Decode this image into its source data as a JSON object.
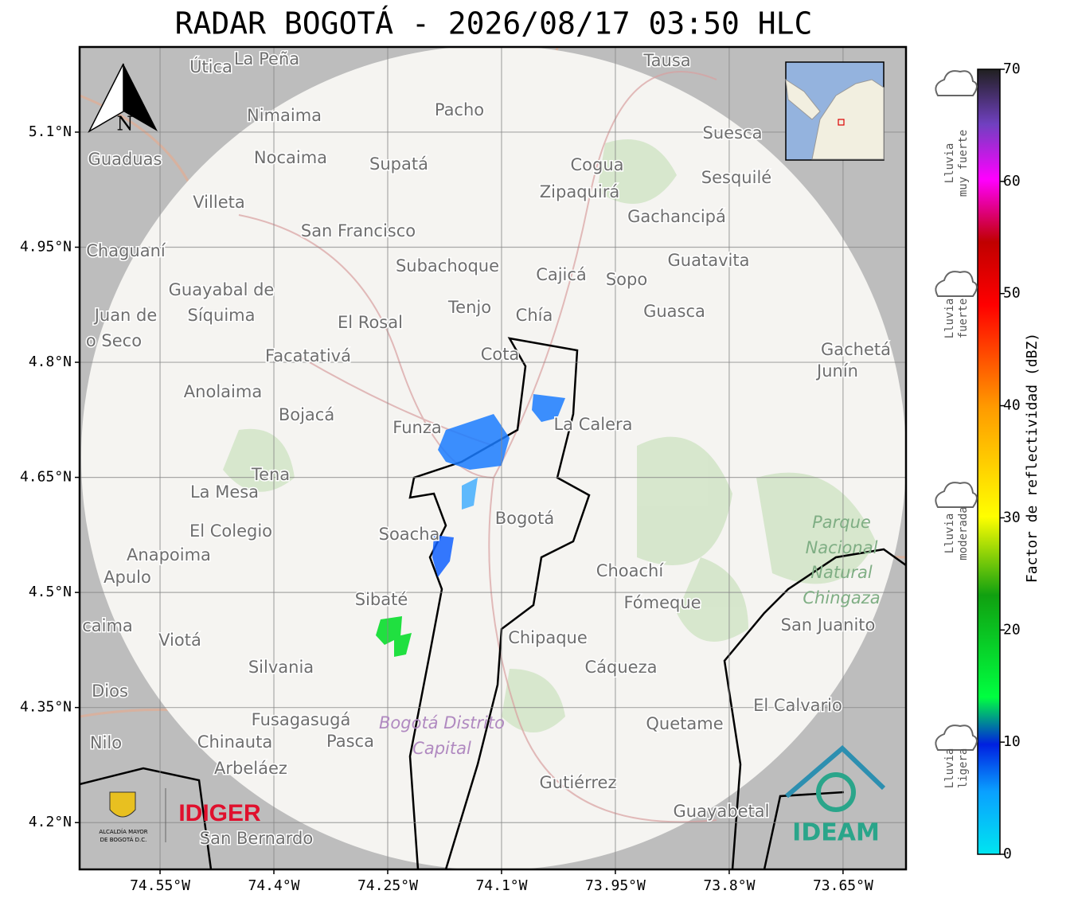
{
  "title": "RADAR BOGOTÁ - 2026/08/17 03:50 HLC",
  "map": {
    "xlim": [
      -74.656,
      -73.567
    ],
    "ylim": [
      4.139,
      5.211
    ],
    "yticks": [
      {
        "value": 5.1,
        "label": "5.1°N"
      },
      {
        "value": 4.95,
        "label": "4.95°N"
      },
      {
        "value": 4.8,
        "label": "4.8°N"
      },
      {
        "value": 4.65,
        "label": "4.65°N"
      },
      {
        "value": 4.5,
        "label": "4.5°N"
      },
      {
        "value": 4.35,
        "label": "4.35°N"
      },
      {
        "value": 4.2,
        "label": "4.2°N"
      }
    ],
    "xticks": [
      {
        "value": -74.55,
        "label": "74.55°W"
      },
      {
        "value": -74.4,
        "label": "74.4°W"
      },
      {
        "value": -74.25,
        "label": "74.25°W"
      },
      {
        "value": -74.1,
        "label": "74.1°W"
      },
      {
        "value": -73.95,
        "label": "73.95°W"
      },
      {
        "value": -73.8,
        "label": "73.8°W"
      },
      {
        "value": -73.65,
        "label": "73.65°W"
      }
    ],
    "north": "N",
    "places": [
      "Útica",
      "La Peña",
      "Tausa",
      "Pacho",
      "Nimaima",
      "Guaduas",
      "Nocaima",
      "Supatá",
      "Cogua",
      "Suesca",
      "Sesquilé",
      "Zipaquirá",
      "Villeta",
      "Gachancipá",
      "San Francisco",
      "Chaguaní",
      "Guatavita",
      "Subachoque",
      "Cajicá",
      "Sopo",
      "Guayabal de",
      "Síquima",
      "Juan de",
      "o Seco",
      "Tenjo",
      "Chía",
      "Guasca",
      "El Rosal",
      "Facatativá",
      "Cota",
      "Gachetá",
      "Junín",
      "Anolaima",
      "Bojacá",
      "Funza",
      "La Calera",
      "Tena",
      "La Mesa",
      "El Colegio",
      "Bogotá",
      "Soacha",
      "Anapoima",
      "Apulo",
      "Choachí",
      "Fómeque",
      "Sibaté",
      "San Juanito",
      "caima",
      "Viotá",
      "Chipaque",
      "Silvania",
      "Cáqueza",
      "Dios",
      "El Calvario",
      "Fusagasugá",
      "Quetame",
      "Nilo",
      "Chinauta",
      "Pasca",
      "Arbeláez",
      "Gutiérrez",
      "Guayabetal",
      "San Bernardo"
    ],
    "park": [
      "Parque",
      "Nacional",
      "Natural",
      "Chingaza"
    ],
    "district": [
      "Bogotá Distrito",
      "Capital"
    ]
  },
  "logos": {
    "idiger": "IDIGER",
    "ideam": "IDEAM",
    "alcaldia": [
      "ALCALDÍA MAYOR",
      "DE BOGOTÁ D.C."
    ]
  },
  "colorbar": {
    "label": "Factor de reflectividad (dBZ)",
    "lim": [
      0,
      70
    ],
    "ticks": [
      0,
      10,
      20,
      30,
      40,
      50,
      60,
      70
    ],
    "categories": [
      [
        "Lluvia",
        "muy fuerte"
      ],
      [
        "Lluvia",
        "fuerte"
      ],
      [
        "Lluvia",
        "moderada"
      ],
      [
        "Lluvia",
        "ligera"
      ]
    ]
  }
}
